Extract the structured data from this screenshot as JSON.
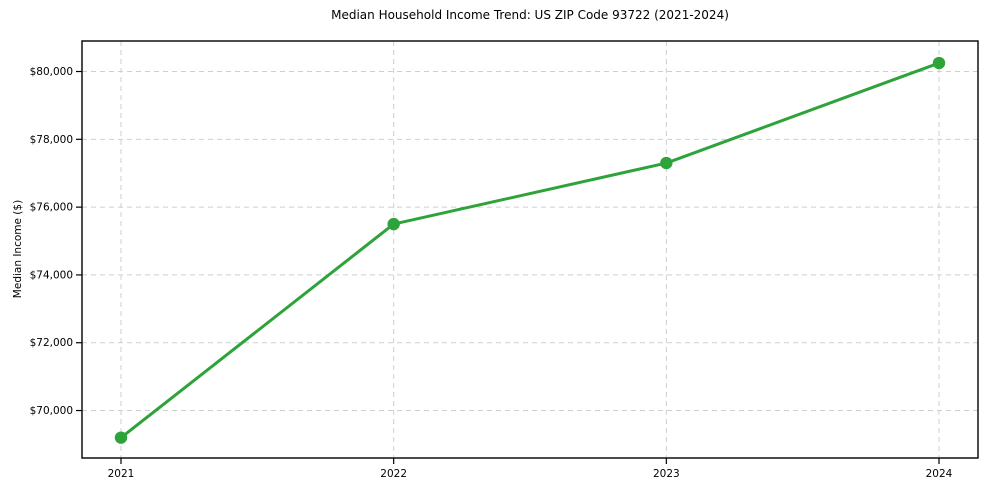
{
  "chart_data": {
    "type": "line",
    "title": "Median Household Income Trend: US ZIP Code 93722 (2021-2024)",
    "xlabel": "",
    "ylabel": "Median Income ($)",
    "x": [
      "2021",
      "2022",
      "2023",
      "2024"
    ],
    "series": [
      {
        "name": "Median Household Income",
        "values": [
          69200,
          75500,
          77300,
          80250
        ]
      }
    ],
    "ylim": [
      68600,
      80900
    ],
    "yticks": [
      {
        "value": 70000,
        "label": "$70,000"
      },
      {
        "value": 72000,
        "label": "$72,000"
      },
      {
        "value": 74000,
        "label": "$74,000"
      },
      {
        "value": 76000,
        "label": "$76,000"
      },
      {
        "value": 78000,
        "label": "$78,000"
      },
      {
        "value": 80000,
        "label": "$80,000"
      }
    ],
    "grid": true,
    "grid_style": "dashed",
    "legend_position": "none",
    "colors": {
      "line": "#2ea33a",
      "marker": "#2ea33a",
      "grid": "#cfcfcf",
      "spine": "#000000",
      "text": "#000000",
      "background": "#ffffff"
    },
    "marker": "circle"
  }
}
